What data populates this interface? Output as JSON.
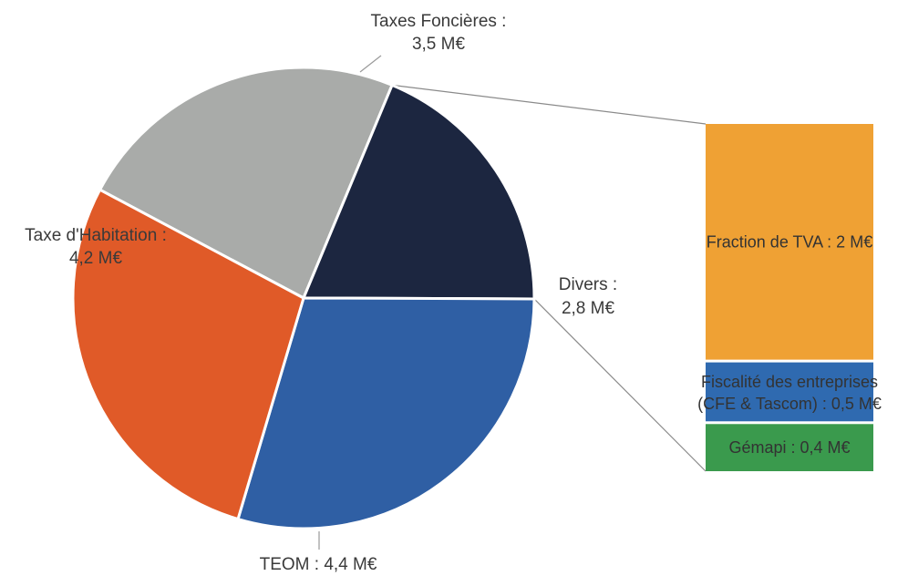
{
  "chart_data": {
    "type": "bar-of-pie",
    "pie": {
      "slices": [
        {
          "name": "Taxes Foncières",
          "value": 3.5,
          "label_line1": "Taxes Foncières :",
          "label_line2": "3,5 M€",
          "color": "#a9aba9"
        },
        {
          "name": "Divers",
          "value": 2.8,
          "label_line1": "Divers :",
          "label_line2": "2,8 M€",
          "color": "#1c2640"
        },
        {
          "name": "TEOM",
          "value": 4.4,
          "label_line1": "TEOM : 4,4 M€",
          "label_line2": "",
          "color": "#2f5fa4"
        },
        {
          "name": "Taxe d'Habitation",
          "value": 4.2,
          "label_line1": "Taxe d'Habitation :",
          "label_line2": "4,2 M€",
          "color": "#e05a28"
        }
      ]
    },
    "bar": {
      "parent": "Divers",
      "segments": [
        {
          "name": "Fraction de TVA",
          "value": 2,
          "label_line1": "Fraction de TVA : 2 M€",
          "label_line2": "",
          "color": "#efa134"
        },
        {
          "name": "Fiscalité des entreprises (CFE & Tascom)",
          "value": 0.5,
          "label_line1": "Fiscalité des entreprises",
          "label_line2": "(CFE & Tascom) : 0,5 M€",
          "color": "#2f6ab0"
        },
        {
          "name": "Gémapi",
          "value": 0.4,
          "label_line1": "Gémapi : 0,4 M€",
          "label_line2": "",
          "color": "#3a9a4d"
        }
      ]
    }
  }
}
